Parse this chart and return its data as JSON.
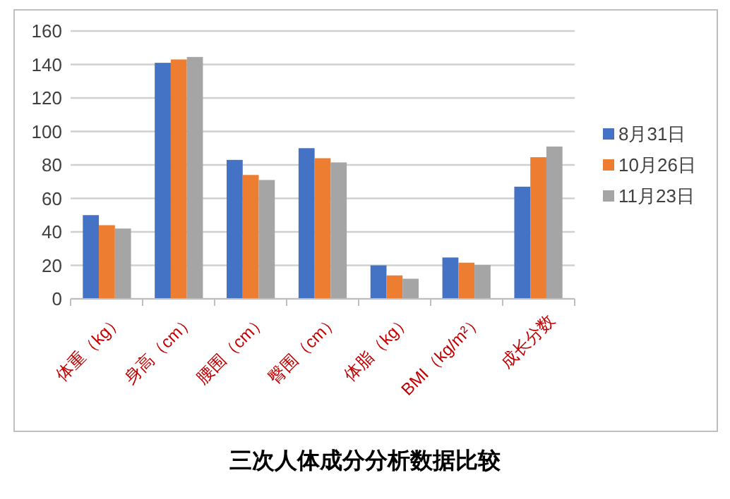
{
  "chart_data": {
    "type": "bar",
    "title": "三次人体成分分析数据比较",
    "categories": [
      "体重（kg）",
      "身高（cm）",
      "腰围（cm）",
      "臀围（cm）",
      "体脂（kg）",
      "BMI（kg/m²）",
      "成长分数"
    ],
    "series": [
      {
        "name": "8月31日",
        "color": "#4472c4",
        "values": [
          50,
          141,
          83,
          90,
          20,
          24.7,
          67
        ]
      },
      {
        "name": "10月26日",
        "color": "#ed7d31",
        "values": [
          44,
          143,
          74,
          84,
          14,
          21.6,
          84.6
        ]
      },
      {
        "name": "11月23日",
        "color": "#a5a5a5",
        "values": [
          42,
          144.5,
          71,
          81.5,
          12,
          20.2,
          91
        ]
      }
    ],
    "ylim": [
      0,
      160
    ],
    "yticks": [
      0,
      20,
      40,
      60,
      80,
      100,
      120,
      140,
      160
    ],
    "grid": "y",
    "legend": "right"
  }
}
